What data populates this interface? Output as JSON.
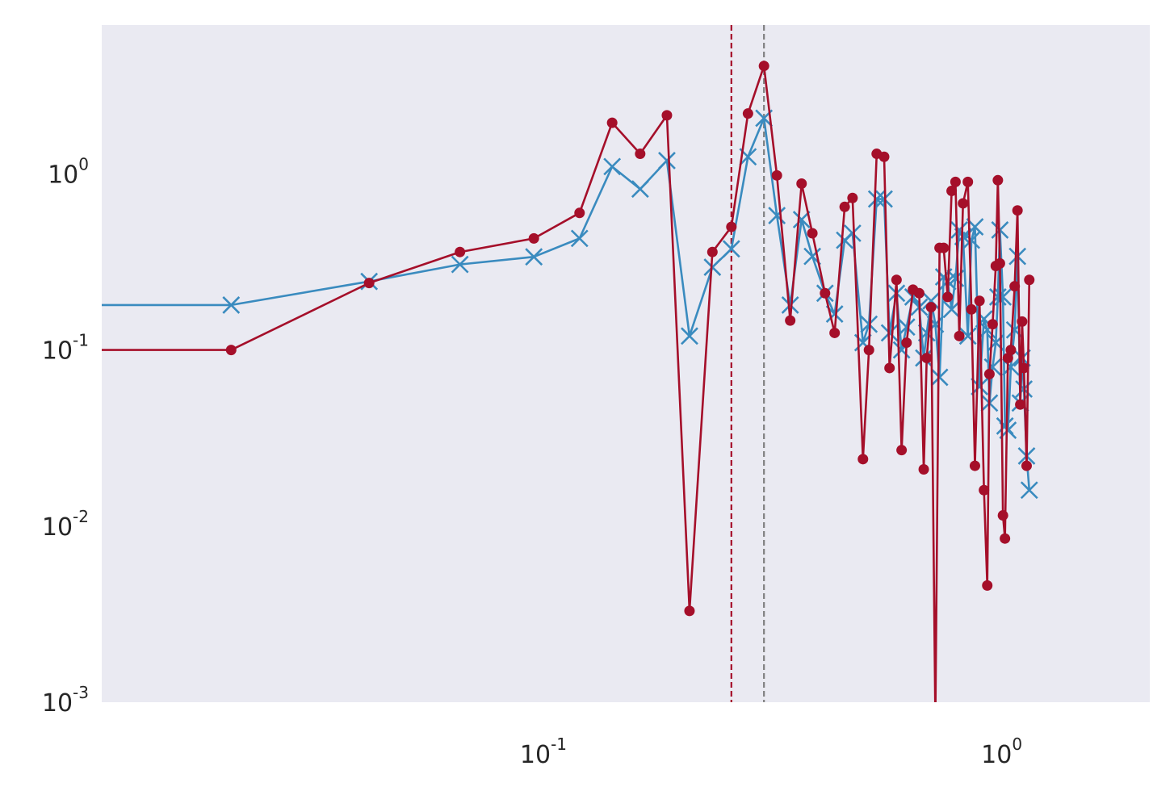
{
  "chart_data": {
    "type": "line",
    "x_scale": "log",
    "y_scale": "log",
    "xlim": [
      0.0107,
      2.07
    ],
    "ylim": [
      0.001,
      7.0
    ],
    "grid": false,
    "legend": "none",
    "title": "",
    "xlabel": "",
    "ylabel": "",
    "background_color": "#eaeaf2",
    "x_ticks": [
      {
        "value": 0.1,
        "base": "10",
        "exp": "-1"
      },
      {
        "value": 1.0,
        "base": "10",
        "exp": "0"
      }
    ],
    "y_ticks": [
      {
        "value": 0.001,
        "base": "10",
        "exp": "-3"
      },
      {
        "value": 0.01,
        "base": "10",
        "exp": "-2"
      },
      {
        "value": 0.1,
        "base": "10",
        "exp": "-1"
      },
      {
        "value": 1.0,
        "base": "10",
        "exp": "0"
      }
    ],
    "vlines": [
      {
        "x": 0.253,
        "color": "#a50f2a",
        "style": "dashed"
      },
      {
        "x": 0.298,
        "color": "#808080",
        "style": "dashed"
      }
    ],
    "series": [
      {
        "color": "#3a8bbf",
        "marker": "x",
        "points": [
          [
            0.0107,
            0.18
          ],
          [
            0.0205,
            0.18
          ],
          [
            0.041,
            0.245
          ],
          [
            0.0647,
            0.306
          ],
          [
            0.0938,
            0.338
          ],
          [
            0.118,
            0.43
          ],
          [
            0.139,
            1.1
          ],
          [
            0.16,
            0.82
          ],
          [
            0.183,
            1.19
          ],
          [
            0.205,
            0.12
          ],
          [
            0.23,
            0.295
          ],
          [
            0.253,
            0.375
          ],
          [
            0.275,
            1.25
          ],
          [
            0.298,
            2.07
          ],
          [
            0.318,
            0.58
          ],
          [
            0.34,
            0.18
          ],
          [
            0.36,
            0.55
          ],
          [
            0.38,
            0.34
          ],
          [
            0.405,
            0.21
          ],
          [
            0.425,
            0.16
          ],
          [
            0.447,
            0.42
          ],
          [
            0.465,
            0.46
          ],
          [
            0.49,
            0.11
          ],
          [
            0.505,
            0.14
          ],
          [
            0.525,
            0.72
          ],
          [
            0.545,
            0.72
          ],
          [
            0.56,
            0.125
          ],
          [
            0.58,
            0.21
          ],
          [
            0.595,
            0.1
          ],
          [
            0.61,
            0.135
          ],
          [
            0.63,
            0.2
          ],
          [
            0.65,
            0.175
          ],
          [
            0.665,
            0.09
          ],
          [
            0.675,
            0.125
          ],
          [
            0.69,
            0.19
          ],
          [
            0.705,
            0.14
          ],
          [
            0.72,
            0.07
          ],
          [
            0.735,
            0.26
          ],
          [
            0.75,
            0.245
          ],
          [
            0.765,
            0.17
          ],
          [
            0.78,
            0.255
          ],
          [
            0.795,
            0.48
          ],
          [
            0.81,
            0.44
          ],
          [
            0.83,
            0.12
          ],
          [
            0.845,
            0.42
          ],
          [
            0.86,
            0.5
          ],
          [
            0.88,
            0.062
          ],
          [
            0.9,
            0.15
          ],
          [
            0.915,
            0.13
          ],
          [
            0.925,
            0.05
          ],
          [
            0.94,
            0.08
          ],
          [
            0.955,
            0.11
          ],
          [
            0.965,
            0.2
          ],
          [
            0.975,
            0.48
          ],
          [
            0.99,
            0.2
          ],
          [
            1.0,
            0.037
          ],
          [
            1.015,
            0.035
          ],
          [
            1.03,
            0.08
          ],
          [
            1.05,
            0.13
          ],
          [
            1.065,
            0.34
          ],
          [
            1.08,
            0.05
          ],
          [
            1.09,
            0.09
          ],
          [
            1.1,
            0.06
          ],
          [
            1.115,
            0.025
          ],
          [
            1.13,
            0.016
          ]
        ]
      },
      {
        "color": "#a50f2a",
        "marker": "dot",
        "points": [
          [
            0.0107,
            0.1
          ],
          [
            0.0205,
            0.1
          ],
          [
            0.041,
            0.24
          ],
          [
            0.0647,
            0.36
          ],
          [
            0.0938,
            0.43
          ],
          [
            0.118,
            0.6
          ],
          [
            0.139,
            1.95
          ],
          [
            0.16,
            1.3
          ],
          [
            0.183,
            2.15
          ],
          [
            0.205,
            0.0033
          ],
          [
            0.23,
            0.36
          ],
          [
            0.253,
            0.5
          ],
          [
            0.275,
            2.2
          ],
          [
            0.298,
            4.1
          ],
          [
            0.318,
            0.98
          ],
          [
            0.34,
            0.147
          ],
          [
            0.36,
            0.88
          ],
          [
            0.38,
            0.46
          ],
          [
            0.405,
            0.21
          ],
          [
            0.425,
            0.125
          ],
          [
            0.447,
            0.65
          ],
          [
            0.465,
            0.73
          ],
          [
            0.49,
            0.024
          ],
          [
            0.505,
            0.1
          ],
          [
            0.525,
            1.3
          ],
          [
            0.545,
            1.25
          ],
          [
            0.56,
            0.079
          ],
          [
            0.58,
            0.25
          ],
          [
            0.595,
            0.027
          ],
          [
            0.61,
            0.11
          ],
          [
            0.63,
            0.22
          ],
          [
            0.65,
            0.21
          ],
          [
            0.665,
            0.021
          ],
          [
            0.675,
            0.09
          ],
          [
            0.69,
            0.175
          ],
          [
            0.705,
            0.0008
          ],
          [
            0.72,
            0.38
          ],
          [
            0.735,
            0.38
          ],
          [
            0.75,
            0.2
          ],
          [
            0.765,
            0.8
          ],
          [
            0.78,
            0.9
          ],
          [
            0.795,
            0.12
          ],
          [
            0.81,
            0.68
          ],
          [
            0.83,
            0.9
          ],
          [
            0.845,
            0.17
          ],
          [
            0.86,
            0.022
          ],
          [
            0.88,
            0.19
          ],
          [
            0.9,
            0.016
          ],
          [
            0.915,
            0.0046
          ],
          [
            0.925,
            0.073
          ],
          [
            0.94,
            0.14
          ],
          [
            0.955,
            0.3
          ],
          [
            0.965,
            0.92
          ],
          [
            0.975,
            0.31
          ],
          [
            0.99,
            0.0115
          ],
          [
            1.0,
            0.0085
          ],
          [
            1.015,
            0.09
          ],
          [
            1.03,
            0.1
          ],
          [
            1.05,
            0.23
          ],
          [
            1.065,
            0.62
          ],
          [
            1.08,
            0.049
          ],
          [
            1.09,
            0.145
          ],
          [
            1.1,
            0.079
          ],
          [
            1.115,
            0.022
          ],
          [
            1.13,
            0.25
          ]
        ]
      }
    ]
  }
}
